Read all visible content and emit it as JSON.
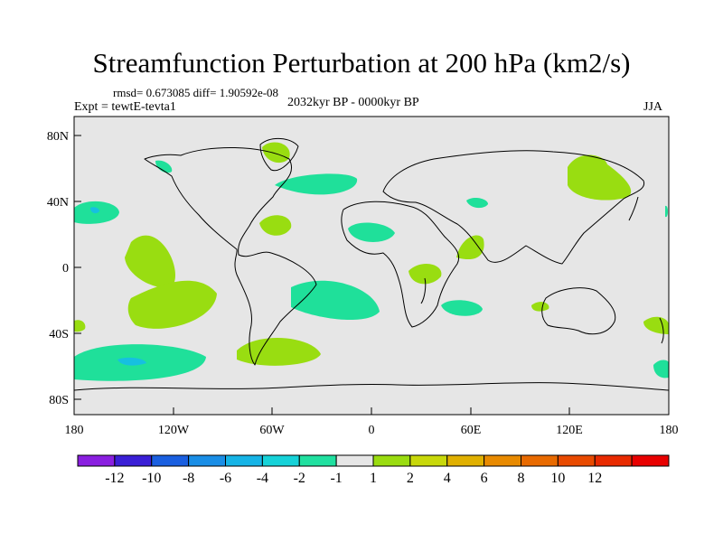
{
  "figure": {
    "title": "Streamfunction Perturbation at 200 hPa (km2/s)",
    "stats": "rmsd= 0.673085 diff= 1.90592e-08",
    "experiment": "Expt = tewtE-tevta1",
    "period": "2032kyr BP - 0000kyr BP",
    "season": "JJA"
  },
  "axes": {
    "lat_ticks": [
      "80N",
      "40N",
      "0",
      "40S",
      "80S"
    ],
    "lon_ticks": [
      "180",
      "120W",
      "60W",
      "0",
      "60E",
      "120E",
      "180"
    ]
  },
  "colorbar": {
    "colors": [
      "#8a1fe0",
      "#3a1fd6",
      "#1a5fe0",
      "#1a8ee6",
      "#16b4e6",
      "#16d2d8",
      "#20e0a0",
      "#e6e6e6",
      "#9adc10",
      "#c8d80a",
      "#e0b000",
      "#e88a00",
      "#e86a00",
      "#e84a00",
      "#e82a00",
      "#e80000"
    ],
    "labels": [
      "-12",
      "-10",
      "-8",
      "-6",
      "-4",
      "-2",
      "-1",
      "1",
      "2",
      "4",
      "6",
      "8",
      "10",
      "12"
    ]
  },
  "colors": {
    "positive": "#99dd11",
    "negative": "#1fe09a",
    "neg_core": "#16c0e0",
    "background": "#e6e6e6"
  }
}
